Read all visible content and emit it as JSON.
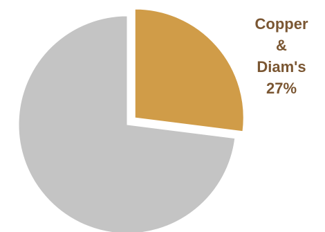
{
  "chart_data": {
    "type": "pie",
    "title": "",
    "slices": [
      {
        "label": "Copper & Diam's",
        "label_lines": [
          "Copper",
          "&",
          "Diam's"
        ],
        "value": 27,
        "value_label": "27%",
        "color": "#D09C48",
        "exploded": true
      },
      {
        "label": "",
        "value": 73,
        "color": "#C4C4C4",
        "exploded": false
      }
    ],
    "start_angle": "12 o'clock",
    "direction": "clockwise",
    "legend": "none"
  },
  "colors": {
    "label_text": "#7A5632",
    "background": "#FFFFFF",
    "separator": "#FFFFFF"
  }
}
